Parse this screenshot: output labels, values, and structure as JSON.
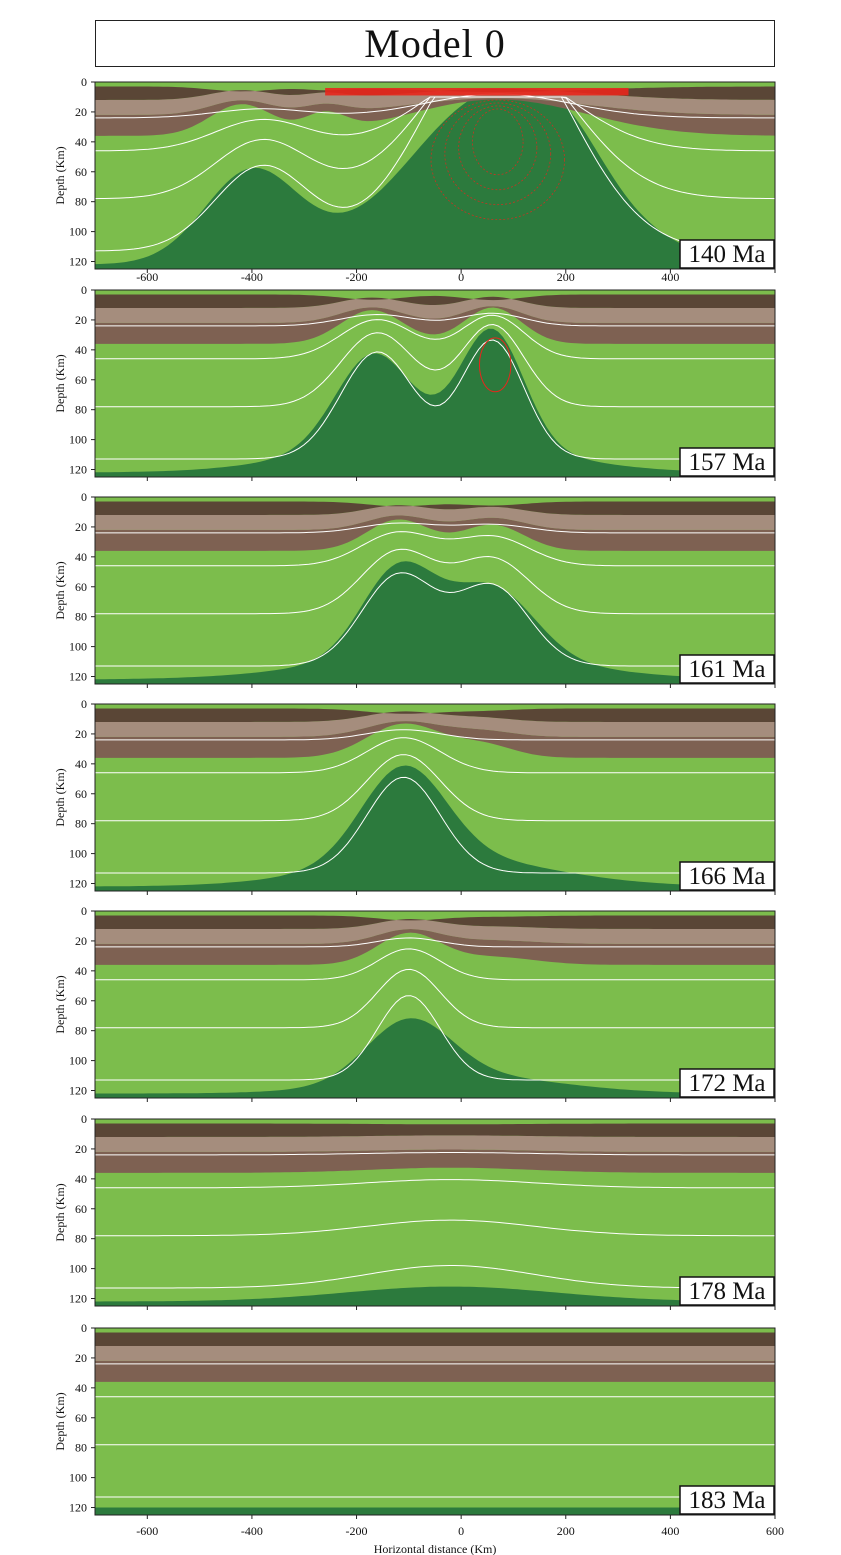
{
  "figure": {
    "title": "Model 0",
    "ylabel": "Depth (Km)",
    "xlabel": "Horizontal distance (Km)"
  },
  "chart_data": [
    {
      "type": "area",
      "panel": 1,
      "age_label": "140 Ma",
      "xlim": [
        -700,
        600
      ],
      "ylim": [
        0,
        125
      ],
      "y_ticks": [
        0,
        20,
        40,
        60,
        80,
        100,
        120
      ],
      "x_ticks": [
        -600,
        -400,
        -200,
        0,
        200,
        400
      ],
      "layers": [
        "upper crust (dark brown)",
        "lower crust (light brown)",
        "lithospheric mantle (light green)",
        "asthenosphere (dark green)"
      ],
      "moho_uplift_km": [
        -420,
        60
      ],
      "asthenosphere_top_min_depth_km": 8
    },
    {
      "type": "area",
      "panel": 2,
      "age_label": "157 Ma",
      "xlim": [
        -700,
        600
      ],
      "ylim": [
        0,
        125
      ],
      "y_ticks": [
        0,
        20,
        40,
        60,
        80,
        100,
        120
      ]
    },
    {
      "type": "area",
      "panel": 3,
      "age_label": "161 Ma",
      "xlim": [
        -700,
        600
      ],
      "ylim": [
        0,
        125
      ],
      "y_ticks": [
        0,
        20,
        40,
        60,
        80,
        100,
        120
      ]
    },
    {
      "type": "area",
      "panel": 4,
      "age_label": "166 Ma",
      "xlim": [
        -700,
        600
      ],
      "ylim": [
        0,
        125
      ],
      "y_ticks": [
        0,
        20,
        40,
        60,
        80,
        100,
        120
      ]
    },
    {
      "type": "area",
      "panel": 5,
      "age_label": "172 Ma",
      "xlim": [
        -700,
        600
      ],
      "ylim": [
        0,
        125
      ],
      "y_ticks": [
        0,
        20,
        40,
        60,
        80,
        100,
        120
      ]
    },
    {
      "type": "area",
      "panel": 6,
      "age_label": "178 Ma",
      "xlim": [
        -700,
        600
      ],
      "ylim": [
        0,
        125
      ],
      "y_ticks": [
        0,
        20,
        40,
        60,
        80,
        100,
        120
      ]
    },
    {
      "type": "area",
      "panel": 7,
      "age_label": "183 Ma",
      "xlim": [
        -700,
        600
      ],
      "ylim": [
        0,
        125
      ],
      "y_ticks": [
        0,
        20,
        40,
        60,
        80,
        100,
        120
      ],
      "x_ticks": [
        -600,
        -400,
        -200,
        0,
        200,
        400,
        600
      ]
    }
  ],
  "colors": {
    "upper_crust": "#5a4636",
    "lower_crust": "#a58d7d",
    "lower_crust_dark": "#7e6152",
    "mantle_light": "#7cbd4c",
    "asthenosphere": "#2c7a3d",
    "isotherm": "#ffffff",
    "melt": "#e8261c"
  }
}
